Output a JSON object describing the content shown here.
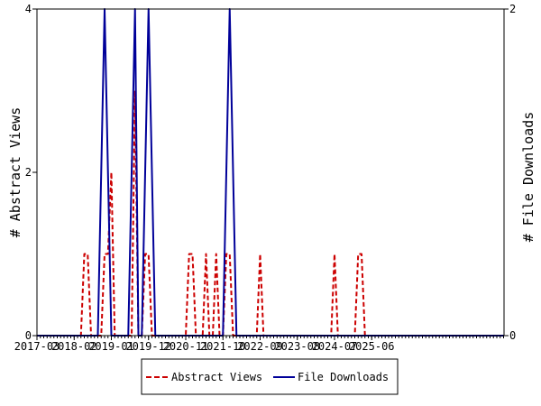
{
  "chart_data": {
    "type": "line",
    "title": "",
    "xlabel": "",
    "ylabel": "# Abstract Views",
    "ylabel_right": "# File Downloads",
    "x_tick_labels": [
      "2017-03",
      "2018-02",
      "2019-01",
      "2019-12",
      "2020-11",
      "2021-10",
      "2022-09",
      "2023-08",
      "2024-07",
      "2025-06"
    ],
    "x_start": "2017-03",
    "ylim": [
      0,
      4
    ],
    "ylim_right": [
      0,
      2
    ],
    "y_ticks": [
      "0",
      "2",
      "4"
    ],
    "y_ticks_right": [
      "0",
      "2"
    ],
    "series": [
      {
        "name": "Abstract Views",
        "axis": "left",
        "color": "#cc0000",
        "dash": "dashed",
        "points": [
          [
            "2018-05",
            1
          ],
          [
            "2018-06",
            1
          ],
          [
            "2018-11",
            1
          ],
          [
            "2018-12",
            1
          ],
          [
            "2019-01",
            2
          ],
          [
            "2019-08",
            3
          ],
          [
            "2019-11",
            1
          ],
          [
            "2019-12",
            1
          ],
          [
            "2020-12",
            1
          ],
          [
            "2021-01",
            1
          ],
          [
            "2021-05",
            1
          ],
          [
            "2021-08",
            1
          ],
          [
            "2021-11",
            1
          ],
          [
            "2021-12",
            1
          ],
          [
            "2022-09",
            1
          ],
          [
            "2024-07",
            1
          ],
          [
            "2025-02",
            1
          ],
          [
            "2025-03",
            1
          ]
        ]
      },
      {
        "name": "File Downloads",
        "axis": "right",
        "color": "#000099",
        "dash": "solid",
        "points": [
          [
            "2018-10",
            1
          ],
          [
            "2018-11",
            2
          ],
          [
            "2018-12",
            1
          ],
          [
            "2019-07",
            1
          ],
          [
            "2019-08",
            2
          ],
          [
            "2019-11",
            1
          ],
          [
            "2019-12",
            2
          ],
          [
            "2020-01",
            1
          ],
          [
            "2021-11",
            1
          ],
          [
            "2021-12",
            2
          ],
          [
            "2022-01",
            1
          ]
        ]
      }
    ],
    "legend_position": "bottom"
  }
}
